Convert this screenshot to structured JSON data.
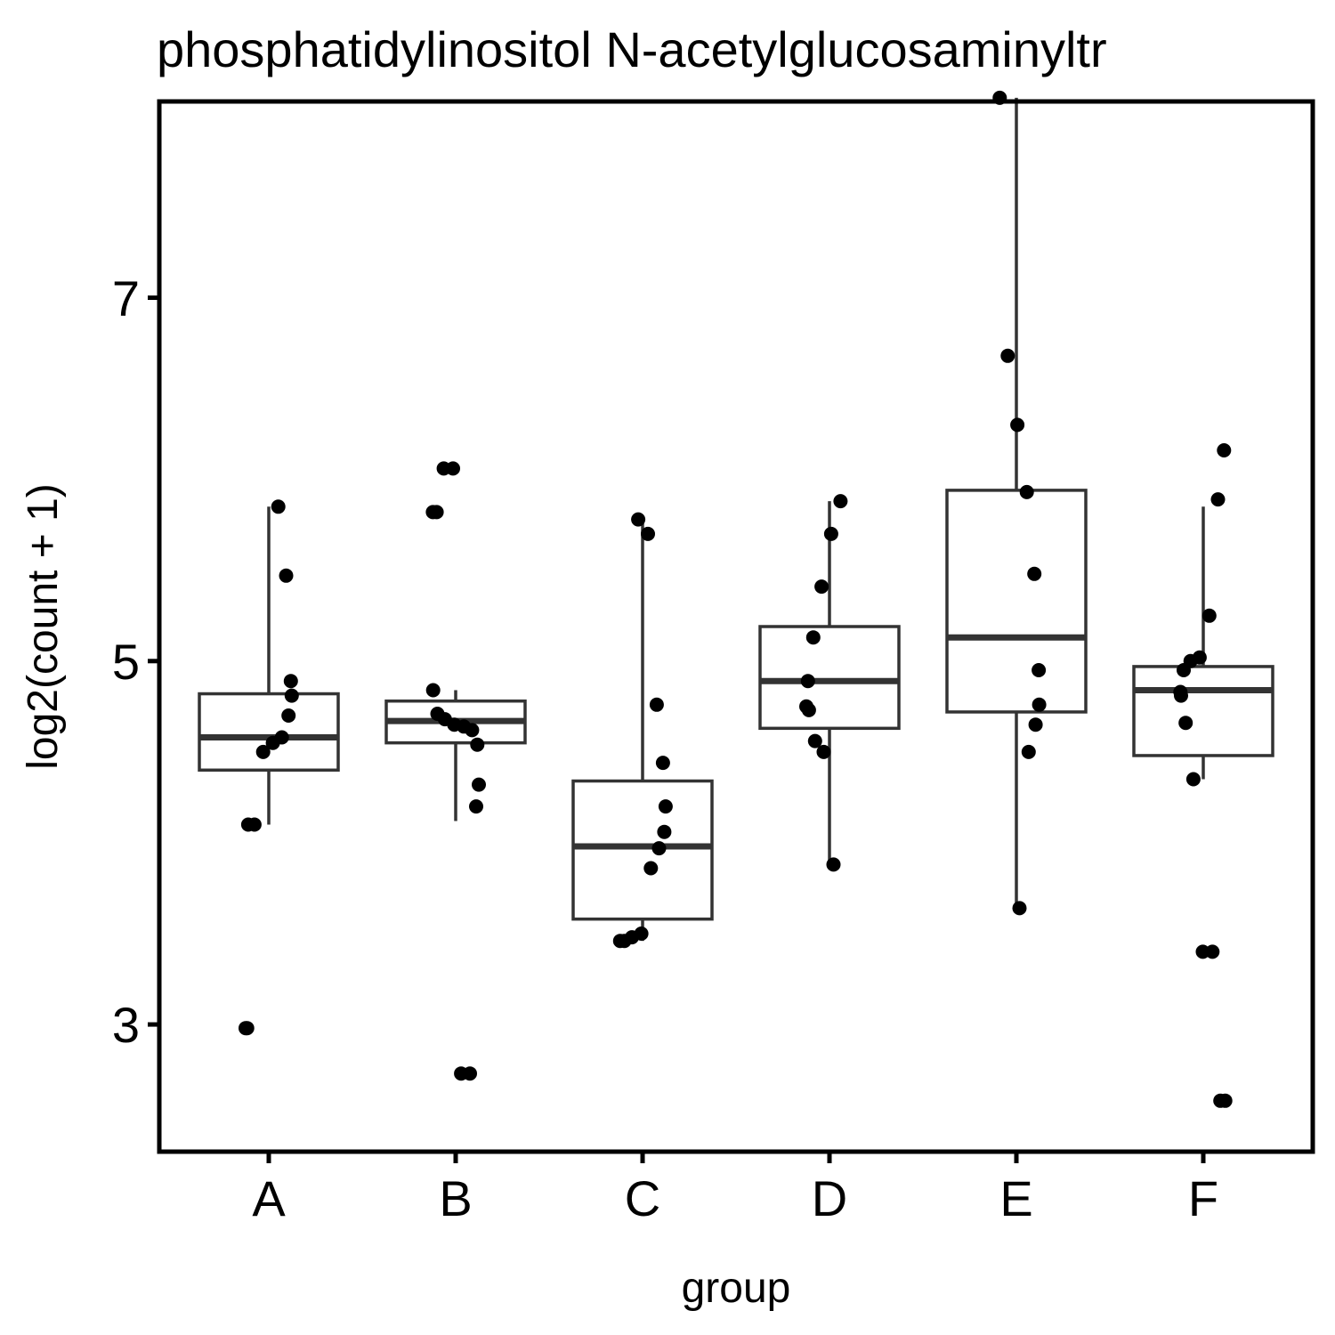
{
  "chart_data": {
    "type": "box",
    "title": "phosphatidylinositol N-acetylglucosaminyltr",
    "xlabel": "group",
    "ylabel": "log2(count + 1)",
    "categories": [
      "A",
      "B",
      "C",
      "D",
      "E",
      "F"
    ],
    "yticks": [
      3,
      5,
      7
    ],
    "ylim": [
      2.3,
      8.08
    ],
    "grid": false,
    "legend": "none",
    "colors": {
      "box": "#333333",
      "point": "#000000",
      "frame": "#000000"
    },
    "boxes": [
      {
        "group": "A",
        "lower_whisker": 4.1,
        "q1": 4.4,
        "median": 4.58,
        "q3": 4.82,
        "upper_whisker": 5.85
      },
      {
        "group": "B",
        "lower_whisker": 4.12,
        "q1": 4.55,
        "median": 4.67,
        "q3": 4.78,
        "upper_whisker": 4.84
      },
      {
        "group": "C",
        "lower_whisker": 3.46,
        "q1": 3.58,
        "median": 3.98,
        "q3": 4.34,
        "upper_whisker": 5.78
      },
      {
        "group": "D",
        "lower_whisker": 3.88,
        "q1": 4.63,
        "median": 4.89,
        "q3": 5.19,
        "upper_whisker": 5.88
      },
      {
        "group": "E",
        "lower_whisker": 3.64,
        "q1": 4.72,
        "median": 5.13,
        "q3": 5.94,
        "upper_whisker": 8.1
      },
      {
        "group": "F",
        "lower_whisker": 4.35,
        "q1": 4.48,
        "median": 4.84,
        "q3": 4.97,
        "upper_whisker": 5.85
      }
    ],
    "points": [
      {
        "group": "A",
        "values": [
          5.85,
          5.47,
          4.89,
          4.81,
          4.7,
          4.58,
          4.55,
          4.5,
          4.1,
          4.1,
          2.98,
          2.98
        ]
      },
      {
        "group": "B",
        "values": [
          6.06,
          6.06,
          5.82,
          5.82,
          4.84,
          4.71,
          4.68,
          4.65,
          4.64,
          4.62,
          4.54,
          4.32,
          4.2,
          2.73,
          2.73
        ]
      },
      {
        "group": "C",
        "values": [
          5.78,
          5.7,
          4.76,
          4.44,
          4.2,
          4.06,
          3.97,
          3.86,
          3.5,
          3.48,
          3.46,
          3.46
        ]
      },
      {
        "group": "D",
        "values": [
          5.88,
          5.7,
          5.41,
          5.13,
          4.89,
          4.75,
          4.73,
          4.56,
          4.5,
          3.88
        ]
      },
      {
        "group": "E",
        "values": [
          8.1,
          6.68,
          6.3,
          5.93,
          5.48,
          4.95,
          4.76,
          4.65,
          4.5,
          3.64
        ]
      },
      {
        "group": "F",
        "values": [
          6.16,
          5.89,
          5.25,
          5.02,
          5.0,
          4.95,
          4.83,
          4.81,
          4.66,
          4.35,
          3.4,
          3.4,
          2.58,
          2.58
        ]
      }
    ]
  }
}
